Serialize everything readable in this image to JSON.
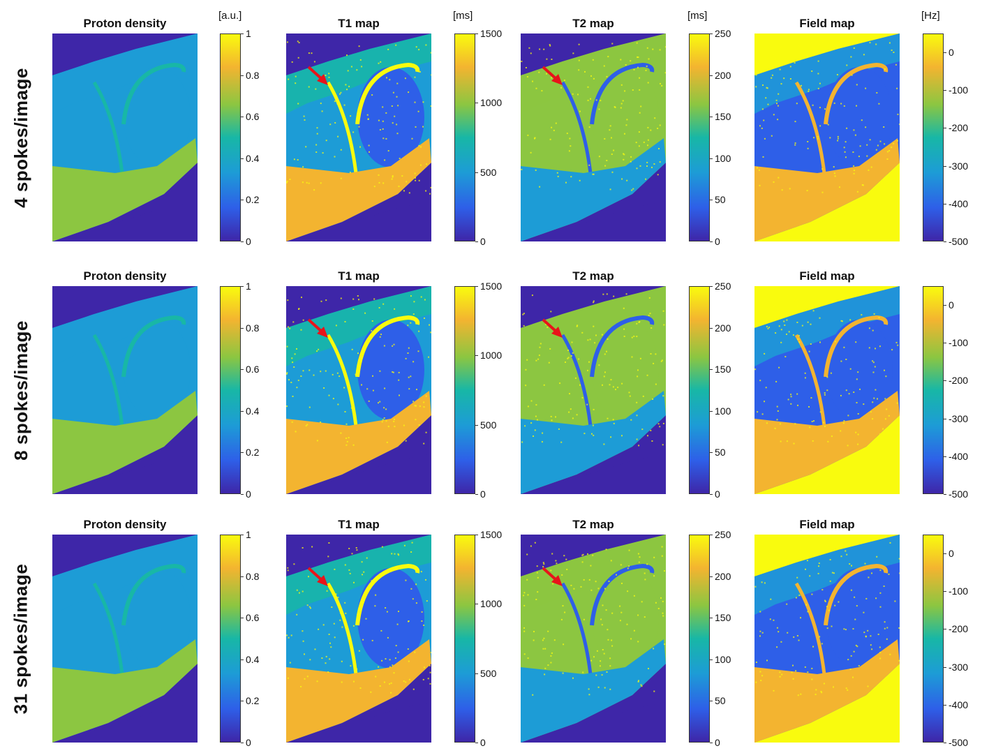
{
  "figure": {
    "rows": [
      {
        "label": "4 spokes/image"
      },
      {
        "label": "8 spokes/image"
      },
      {
        "label": "31 spokes/image"
      }
    ],
    "panels": [
      {
        "title": "Proton density",
        "unit": "[a.u.]",
        "ticks": [
          "1",
          "0.8",
          "0.6",
          "0.4",
          "0.2",
          "0"
        ],
        "kind": "pd"
      },
      {
        "title": "T1 map",
        "unit": "[ms]",
        "ticks": [
          "1500",
          "1000",
          "500",
          "0"
        ],
        "kind": "t1"
      },
      {
        "title": "T2 map",
        "unit": "[ms]",
        "ticks": [
          "250",
          "200",
          "150",
          "100",
          "50",
          "0"
        ],
        "kind": "t2"
      },
      {
        "title": "Field map",
        "unit": "[Hz]",
        "ticks": [
          "0",
          "-100",
          "-200",
          "-300",
          "-400",
          "-500"
        ],
        "kind": "fm"
      }
    ],
    "colormap": [
      "#3e26a8",
      "#2e5fe8",
      "#1d9cd6",
      "#18b7a6",
      "#8cc641",
      "#f3b430",
      "#f9fb0e"
    ],
    "arrow_color": "#e8141a"
  }
}
